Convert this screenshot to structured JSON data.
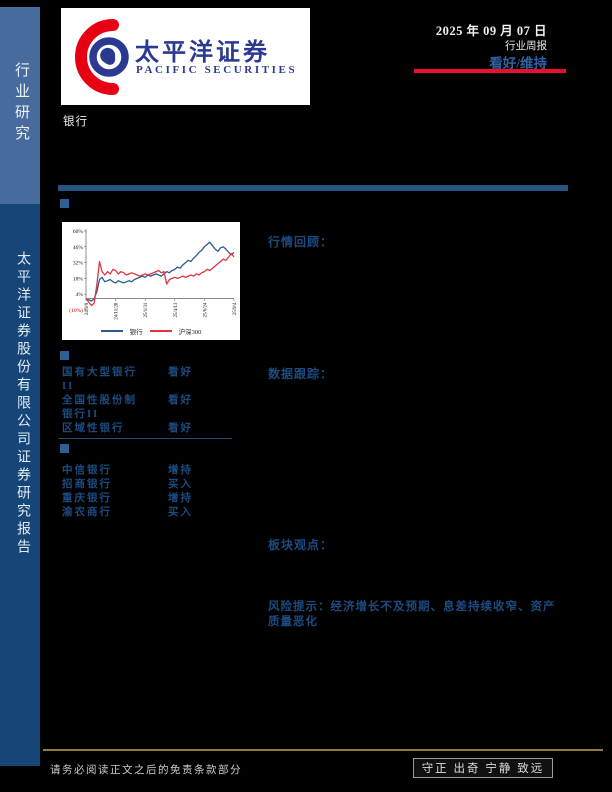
{
  "header": {
    "date": "2025 年 09 月 07 日",
    "report_type": "行业周报",
    "rating": "看好/维持",
    "industry": "银行",
    "accent_red": "#e8112d",
    "rating_blue": "#2f62a2"
  },
  "logo": {
    "name_cn": "太平洋证券",
    "name_en": "PACIFIC SECURITIES",
    "brand_blue": "#2b3990",
    "brand_red": "#e60012"
  },
  "sidebar": {
    "top_label": "行业研究",
    "bottom_label": "太平洋证券股份有限公司证券研究报告"
  },
  "sections": {
    "market_review": "行情回顾：",
    "data_tracking": "数据跟踪：",
    "sector_view": "板块观点：",
    "risk_note": "风险提示：经济增长不及预期、息差持续收窄、资产质量恶化"
  },
  "industry_ratings": {
    "rows": [
      {
        "name": "国有大型银行II",
        "rating": "看好"
      },
      {
        "name": "全国性股份制银行II",
        "rating": "看好"
      },
      {
        "name": "区域性银行",
        "rating": "看好"
      }
    ]
  },
  "stock_ratings": {
    "rows": [
      {
        "name": "中信银行",
        "rating": "增持"
      },
      {
        "name": "招商银行",
        "rating": "买入"
      },
      {
        "name": "重庆银行",
        "rating": "增持"
      },
      {
        "name": "渝农商行",
        "rating": "买入"
      }
    ]
  },
  "chart_data": {
    "type": "line",
    "title": "",
    "xlabel": "",
    "ylabel": "",
    "unit": "percent",
    "ylim": [
      -10,
      60
    ],
    "grid": false,
    "legend_position": "bottom",
    "y_ticks": [
      {
        "label": "60%",
        "v": 60
      },
      {
        "label": "46%",
        "v": 46
      },
      {
        "label": "32%",
        "v": 32
      },
      {
        "label": "18%",
        "v": 18
      },
      {
        "label": "4%",
        "v": 4
      },
      {
        "label": "(10%)",
        "v": -10,
        "red": true
      }
    ],
    "x_ticks": [
      "24/9/9",
      "24/11/20",
      "25/1/31",
      "25/4/13",
      "25/6/24",
      "25/9/4"
    ],
    "series": [
      {
        "name": "银行",
        "color": "#2e5b8f",
        "values": [
          0,
          -1,
          -2,
          0,
          6,
          17,
          19,
          15,
          16,
          17,
          15,
          14,
          16,
          15,
          14,
          15,
          16,
          15,
          17,
          18,
          19,
          20,
          19,
          21,
          20,
          21,
          22,
          21,
          20,
          22,
          24,
          23,
          25,
          26,
          28,
          27,
          30,
          32,
          34,
          33,
          36,
          38,
          41,
          43,
          46,
          48,
          50,
          47,
          44,
          42,
          45,
          46,
          44,
          41,
          39,
          41
        ]
      },
      {
        "name": "沪深300",
        "color": "#e0353f",
        "values": [
          0,
          -3,
          -6,
          -4,
          12,
          33,
          24,
          21,
          24,
          22,
          26,
          25,
          22,
          24,
          23,
          21,
          22,
          23,
          22,
          21,
          20,
          21,
          22,
          21,
          22,
          23,
          24,
          25,
          23,
          24,
          13,
          17,
          18,
          19,
          18,
          19,
          20,
          19,
          20,
          21,
          20,
          22,
          21,
          23,
          24,
          26,
          25,
          27,
          29,
          31,
          33,
          35,
          34,
          37,
          40,
          37
        ]
      }
    ]
  },
  "footer": {
    "disclaimer": "请务必阅读正文之后的免责条款部分",
    "motto": "守正 出奇 宁静 致远"
  }
}
